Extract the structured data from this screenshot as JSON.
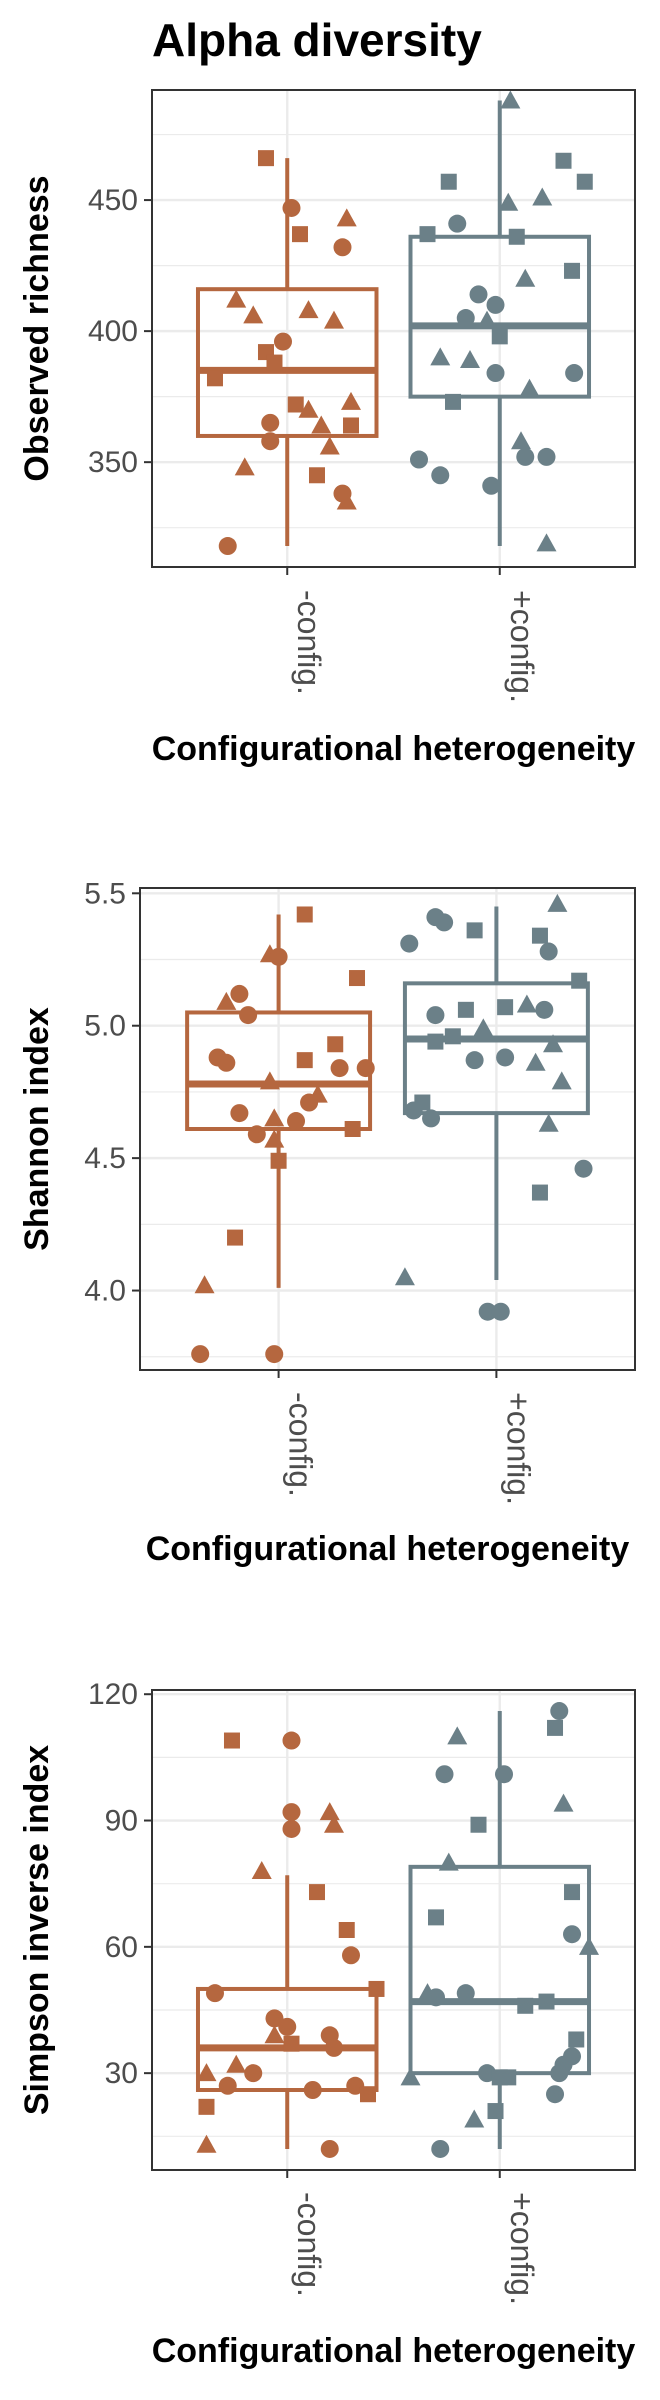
{
  "figure_title": "Alpha diversity",
  "colors": {
    "minus": "#B5673F",
    "plus": "#6B8088",
    "grid": "#EBEBEB",
    "panel_border": "#333333"
  },
  "shape_legend": [
    "circle",
    "square",
    "triangle"
  ],
  "chart_data": [
    {
      "type": "box",
      "title": "",
      "xlabel": "Configurational heterogeneity",
      "ylabel": "Observed richness",
      "categories": [
        "-config.",
        "+config."
      ],
      "ylim": [
        310,
        492
      ],
      "yticks": [
        350,
        400,
        450
      ],
      "grid": true,
      "boxes": [
        {
          "category": "-config.",
          "whisker_low": 318,
          "q1": 360,
          "median": 385,
          "q3": 416,
          "whisker_high": 466
        },
        {
          "category": "+config.",
          "whisker_low": 318,
          "q1": 375,
          "median": 402,
          "q3": 436,
          "whisker_high": 488
        }
      ],
      "points": [
        [
          {
            "x": -0.34,
            "y": 382,
            "shape": "square"
          },
          {
            "x": -0.1,
            "y": 466,
            "shape": "square"
          },
          {
            "x": 0.02,
            "y": 447,
            "shape": "circle"
          },
          {
            "x": 0.06,
            "y": 437,
            "shape": "square"
          },
          {
            "x": 0.28,
            "y": 443,
            "shape": "triangle"
          },
          {
            "x": 0.26,
            "y": 432,
            "shape": "circle"
          },
          {
            "x": -0.24,
            "y": 412,
            "shape": "triangle"
          },
          {
            "x": -0.16,
            "y": 406,
            "shape": "triangle"
          },
          {
            "x": 0.1,
            "y": 408,
            "shape": "triangle"
          },
          {
            "x": 0.22,
            "y": 404,
            "shape": "triangle"
          },
          {
            "x": -0.02,
            "y": 396,
            "shape": "circle"
          },
          {
            "x": -0.1,
            "y": 392,
            "shape": "square"
          },
          {
            "x": -0.06,
            "y": 388,
            "shape": "square"
          },
          {
            "x": 0.04,
            "y": 372,
            "shape": "square"
          },
          {
            "x": 0.1,
            "y": 370,
            "shape": "triangle"
          },
          {
            "x": 0.3,
            "y": 373,
            "shape": "triangle"
          },
          {
            "x": -0.08,
            "y": 365,
            "shape": "circle"
          },
          {
            "x": 0.16,
            "y": 364,
            "shape": "triangle"
          },
          {
            "x": 0.3,
            "y": 364,
            "shape": "square"
          },
          {
            "x": -0.08,
            "y": 358,
            "shape": "circle"
          },
          {
            "x": 0.2,
            "y": 356,
            "shape": "triangle"
          },
          {
            "x": -0.2,
            "y": 348,
            "shape": "triangle"
          },
          {
            "x": 0.14,
            "y": 345,
            "shape": "square"
          },
          {
            "x": 0.26,
            "y": 338,
            "shape": "circle"
          },
          {
            "x": 0.28,
            "y": 335,
            "shape": "triangle"
          },
          {
            "x": -0.28,
            "y": 318,
            "shape": "circle"
          }
        ],
        [
          {
            "x": 0.05,
            "y": 488,
            "shape": "triangle"
          },
          {
            "x": 0.3,
            "y": 465,
            "shape": "square"
          },
          {
            "x": 0.4,
            "y": 457,
            "shape": "square"
          },
          {
            "x": -0.24,
            "y": 457,
            "shape": "square"
          },
          {
            "x": 0.2,
            "y": 451,
            "shape": "triangle"
          },
          {
            "x": 0.04,
            "y": 449,
            "shape": "triangle"
          },
          {
            "x": -0.2,
            "y": 441,
            "shape": "circle"
          },
          {
            "x": -0.34,
            "y": 437,
            "shape": "square"
          },
          {
            "x": 0.08,
            "y": 436,
            "shape": "square"
          },
          {
            "x": 0.34,
            "y": 423,
            "shape": "square"
          },
          {
            "x": 0.12,
            "y": 420,
            "shape": "triangle"
          },
          {
            "x": -0.1,
            "y": 414,
            "shape": "circle"
          },
          {
            "x": -0.02,
            "y": 410,
            "shape": "circle"
          },
          {
            "x": -0.16,
            "y": 405,
            "shape": "circle"
          },
          {
            "x": -0.06,
            "y": 404,
            "shape": "triangle"
          },
          {
            "x": 0.0,
            "y": 398,
            "shape": "square"
          },
          {
            "x": -0.28,
            "y": 390,
            "shape": "triangle"
          },
          {
            "x": -0.14,
            "y": 389,
            "shape": "triangle"
          },
          {
            "x": -0.02,
            "y": 384,
            "shape": "circle"
          },
          {
            "x": 0.35,
            "y": 384,
            "shape": "circle"
          },
          {
            "x": 0.14,
            "y": 378,
            "shape": "triangle"
          },
          {
            "x": -0.22,
            "y": 373,
            "shape": "square"
          },
          {
            "x": 0.1,
            "y": 358,
            "shape": "triangle"
          },
          {
            "x": 0.12,
            "y": 352,
            "shape": "circle"
          },
          {
            "x": 0.22,
            "y": 352,
            "shape": "circle"
          },
          {
            "x": -0.38,
            "y": 351,
            "shape": "circle"
          },
          {
            "x": -0.28,
            "y": 345,
            "shape": "circle"
          },
          {
            "x": -0.04,
            "y": 341,
            "shape": "circle"
          },
          {
            "x": 0.22,
            "y": 319,
            "shape": "triangle"
          }
        ]
      ]
    },
    {
      "type": "box",
      "title": "",
      "xlabel": "Configurational heterogeneity",
      "ylabel": "Shannon index",
      "categories": [
        "-config.",
        "+config."
      ],
      "ylim": [
        3.7,
        5.52
      ],
      "yticks": [
        4.0,
        4.5,
        5.0,
        5.5
      ],
      "grid": true,
      "boxes": [
        {
          "category": "-config.",
          "whisker_low": 4.01,
          "q1": 4.61,
          "median": 4.78,
          "q3": 5.05,
          "whisker_high": 5.42
        },
        {
          "category": "+config.",
          "whisker_low": 4.04,
          "q1": 4.67,
          "median": 4.95,
          "q3": 5.16,
          "whisker_high": 5.45
        }
      ],
      "points": [
        [
          {
            "x": 0.12,
            "y": 5.42,
            "shape": "square"
          },
          {
            "x": -0.04,
            "y": 5.27,
            "shape": "triangle"
          },
          {
            "x": 0.0,
            "y": 5.26,
            "shape": "circle"
          },
          {
            "x": 0.36,
            "y": 5.18,
            "shape": "square"
          },
          {
            "x": -0.18,
            "y": 5.12,
            "shape": "circle"
          },
          {
            "x": -0.24,
            "y": 5.09,
            "shape": "triangle"
          },
          {
            "x": -0.14,
            "y": 5.04,
            "shape": "circle"
          },
          {
            "x": 0.26,
            "y": 4.93,
            "shape": "square"
          },
          {
            "x": -0.28,
            "y": 4.88,
            "shape": "circle"
          },
          {
            "x": 0.12,
            "y": 4.87,
            "shape": "square"
          },
          {
            "x": -0.24,
            "y": 4.86,
            "shape": "circle"
          },
          {
            "x": 0.28,
            "y": 4.84,
            "shape": "circle"
          },
          {
            "x": 0.4,
            "y": 4.84,
            "shape": "circle"
          },
          {
            "x": -0.04,
            "y": 4.79,
            "shape": "triangle"
          },
          {
            "x": 0.18,
            "y": 4.74,
            "shape": "triangle"
          },
          {
            "x": 0.14,
            "y": 4.71,
            "shape": "circle"
          },
          {
            "x": -0.18,
            "y": 4.67,
            "shape": "circle"
          },
          {
            "x": -0.02,
            "y": 4.65,
            "shape": "triangle"
          },
          {
            "x": 0.08,
            "y": 4.64,
            "shape": "circle"
          },
          {
            "x": 0.34,
            "y": 4.61,
            "shape": "square"
          },
          {
            "x": -0.1,
            "y": 4.59,
            "shape": "circle"
          },
          {
            "x": -0.02,
            "y": 4.57,
            "shape": "triangle"
          },
          {
            "x": 0.0,
            "y": 4.49,
            "shape": "square"
          },
          {
            "x": -0.2,
            "y": 4.2,
            "shape": "square"
          },
          {
            "x": -0.34,
            "y": 4.02,
            "shape": "triangle"
          },
          {
            "x": -0.36,
            "y": 3.76,
            "shape": "circle"
          },
          {
            "x": -0.02,
            "y": 3.76,
            "shape": "circle"
          }
        ],
        [
          {
            "x": 0.28,
            "y": 5.46,
            "shape": "triangle"
          },
          {
            "x": -0.28,
            "y": 5.41,
            "shape": "circle"
          },
          {
            "x": -0.24,
            "y": 5.39,
            "shape": "circle"
          },
          {
            "x": -0.1,
            "y": 5.36,
            "shape": "square"
          },
          {
            "x": 0.2,
            "y": 5.34,
            "shape": "square"
          },
          {
            "x": -0.4,
            "y": 5.31,
            "shape": "circle"
          },
          {
            "x": 0.24,
            "y": 5.28,
            "shape": "circle"
          },
          {
            "x": 0.38,
            "y": 5.17,
            "shape": "square"
          },
          {
            "x": 0.14,
            "y": 5.08,
            "shape": "triangle"
          },
          {
            "x": -0.14,
            "y": 5.06,
            "shape": "square"
          },
          {
            "x": -0.28,
            "y": 5.04,
            "shape": "circle"
          },
          {
            "x": 0.04,
            "y": 5.07,
            "shape": "square"
          },
          {
            "x": 0.22,
            "y": 5.06,
            "shape": "circle"
          },
          {
            "x": -0.06,
            "y": 4.99,
            "shape": "triangle"
          },
          {
            "x": -0.2,
            "y": 4.96,
            "shape": "square"
          },
          {
            "x": -0.28,
            "y": 4.94,
            "shape": "square"
          },
          {
            "x": 0.26,
            "y": 4.93,
            "shape": "triangle"
          },
          {
            "x": -0.1,
            "y": 4.87,
            "shape": "circle"
          },
          {
            "x": 0.04,
            "y": 4.88,
            "shape": "circle"
          },
          {
            "x": 0.18,
            "y": 4.86,
            "shape": "triangle"
          },
          {
            "x": 0.3,
            "y": 4.79,
            "shape": "triangle"
          },
          {
            "x": -0.34,
            "y": 4.71,
            "shape": "square"
          },
          {
            "x": -0.38,
            "y": 4.68,
            "shape": "circle"
          },
          {
            "x": -0.3,
            "y": 4.65,
            "shape": "circle"
          },
          {
            "x": 0.24,
            "y": 4.63,
            "shape": "triangle"
          },
          {
            "x": 0.4,
            "y": 4.46,
            "shape": "circle"
          },
          {
            "x": 0.2,
            "y": 4.37,
            "shape": "square"
          },
          {
            "x": -0.42,
            "y": 4.05,
            "shape": "triangle"
          },
          {
            "x": -0.04,
            "y": 3.92,
            "shape": "circle"
          },
          {
            "x": 0.02,
            "y": 3.92,
            "shape": "circle"
          }
        ]
      ]
    },
    {
      "type": "box",
      "title": "",
      "xlabel": "Configurational heterogeneity",
      "ylabel": "Simpson inverse index",
      "categories": [
        "-config.",
        "+config."
      ],
      "ylim": [
        7,
        121
      ],
      "yticks": [
        30,
        60,
        90,
        120
      ],
      "grid": true,
      "boxes": [
        {
          "category": "-config.",
          "whisker_low": 12,
          "q1": 26,
          "median": 36,
          "q3": 50,
          "whisker_high": 77
        },
        {
          "category": "+config.",
          "whisker_low": 12,
          "q1": 30,
          "median": 47,
          "q3": 79,
          "whisker_high": 116
        }
      ],
      "points": [
        [
          {
            "x": -0.26,
            "y": 109,
            "shape": "square"
          },
          {
            "x": 0.02,
            "y": 109,
            "shape": "circle"
          },
          {
            "x": 0.2,
            "y": 92,
            "shape": "triangle"
          },
          {
            "x": 0.02,
            "y": 92,
            "shape": "circle"
          },
          {
            "x": 0.22,
            "y": 89,
            "shape": "triangle"
          },
          {
            "x": 0.02,
            "y": 88,
            "shape": "circle"
          },
          {
            "x": -0.12,
            "y": 78,
            "shape": "triangle"
          },
          {
            "x": 0.14,
            "y": 73,
            "shape": "square"
          },
          {
            "x": 0.28,
            "y": 64,
            "shape": "square"
          },
          {
            "x": 0.3,
            "y": 58,
            "shape": "circle"
          },
          {
            "x": 0.42,
            "y": 50,
            "shape": "square"
          },
          {
            "x": -0.34,
            "y": 49,
            "shape": "circle"
          },
          {
            "x": -0.06,
            "y": 43,
            "shape": "circle"
          },
          {
            "x": 0.0,
            "y": 41,
            "shape": "circle"
          },
          {
            "x": -0.06,
            "y": 39,
            "shape": "triangle"
          },
          {
            "x": 0.2,
            "y": 39,
            "shape": "circle"
          },
          {
            "x": 0.02,
            "y": 37,
            "shape": "square"
          },
          {
            "x": 0.22,
            "y": 36,
            "shape": "circle"
          },
          {
            "x": -0.38,
            "y": 30,
            "shape": "triangle"
          },
          {
            "x": -0.24,
            "y": 32,
            "shape": "triangle"
          },
          {
            "x": -0.16,
            "y": 30,
            "shape": "circle"
          },
          {
            "x": -0.28,
            "y": 27,
            "shape": "circle"
          },
          {
            "x": 0.12,
            "y": 26,
            "shape": "circle"
          },
          {
            "x": 0.32,
            "y": 27,
            "shape": "circle"
          },
          {
            "x": 0.38,
            "y": 25,
            "shape": "square"
          },
          {
            "x": -0.38,
            "y": 22,
            "shape": "square"
          },
          {
            "x": -0.38,
            "y": 13,
            "shape": "triangle"
          },
          {
            "x": 0.2,
            "y": 12,
            "shape": "circle"
          }
        ],
        [
          {
            "x": 0.28,
            "y": 116,
            "shape": "circle"
          },
          {
            "x": 0.26,
            "y": 112,
            "shape": "square"
          },
          {
            "x": -0.2,
            "y": 110,
            "shape": "triangle"
          },
          {
            "x": -0.26,
            "y": 101,
            "shape": "circle"
          },
          {
            "x": 0.02,
            "y": 101,
            "shape": "circle"
          },
          {
            "x": 0.3,
            "y": 94,
            "shape": "triangle"
          },
          {
            "x": -0.1,
            "y": 89,
            "shape": "square"
          },
          {
            "x": -0.24,
            "y": 80,
            "shape": "triangle"
          },
          {
            "x": 0.34,
            "y": 73,
            "shape": "square"
          },
          {
            "x": -0.3,
            "y": 67,
            "shape": "square"
          },
          {
            "x": 0.34,
            "y": 63,
            "shape": "circle"
          },
          {
            "x": 0.42,
            "y": 60,
            "shape": "triangle"
          },
          {
            "x": -0.34,
            "y": 49,
            "shape": "triangle"
          },
          {
            "x": -0.16,
            "y": 49,
            "shape": "circle"
          },
          {
            "x": -0.3,
            "y": 48,
            "shape": "circle"
          },
          {
            "x": 0.22,
            "y": 47,
            "shape": "square"
          },
          {
            "x": 0.12,
            "y": 46,
            "shape": "square"
          },
          {
            "x": 0.36,
            "y": 38,
            "shape": "square"
          },
          {
            "x": 0.34,
            "y": 34,
            "shape": "circle"
          },
          {
            "x": 0.3,
            "y": 32,
            "shape": "circle"
          },
          {
            "x": 0.28,
            "y": 30,
            "shape": "circle"
          },
          {
            "x": -0.42,
            "y": 29,
            "shape": "triangle"
          },
          {
            "x": -0.06,
            "y": 30,
            "shape": "circle"
          },
          {
            "x": 0.0,
            "y": 29,
            "shape": "square"
          },
          {
            "x": 0.04,
            "y": 29,
            "shape": "square"
          },
          {
            "x": 0.26,
            "y": 25,
            "shape": "circle"
          },
          {
            "x": -0.02,
            "y": 21,
            "shape": "square"
          },
          {
            "x": -0.12,
            "y": 19,
            "shape": "triangle"
          },
          {
            "x": -0.28,
            "y": 12,
            "shape": "circle"
          }
        ]
      ]
    }
  ]
}
